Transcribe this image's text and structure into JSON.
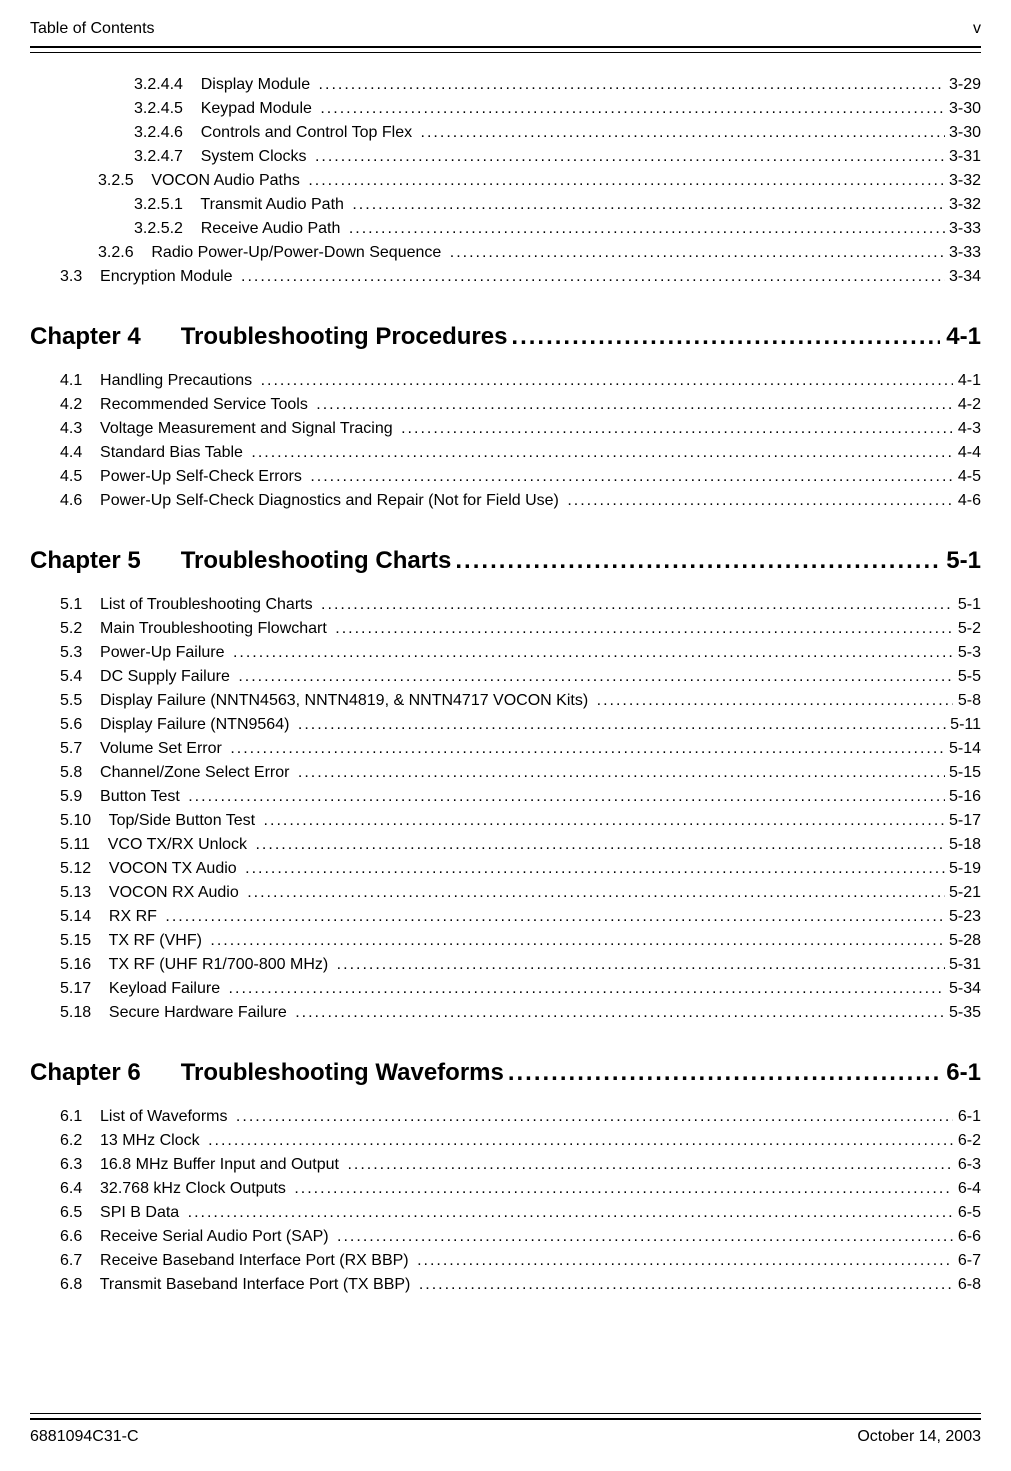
{
  "header": {
    "left": "Table of Contents",
    "right": "v"
  },
  "footer": {
    "left": "6881094C31-C",
    "right": "October 14, 2003"
  },
  "pre_entries": [
    {
      "indent": 3,
      "num": "3.2.4.4",
      "title": "Display Module",
      "page": "3-29"
    },
    {
      "indent": 3,
      "num": "3.2.4.5",
      "title": "Keypad Module",
      "page": "3-30"
    },
    {
      "indent": 3,
      "num": "3.2.4.6",
      "title": "Controls and Control Top Flex",
      "page": "3-30"
    },
    {
      "indent": 3,
      "num": "3.2.4.7",
      "title": "System Clocks",
      "page": "3-31"
    },
    {
      "indent": 2,
      "num": "3.2.5",
      "title": "VOCON Audio Paths",
      "page": "3-32"
    },
    {
      "indent": 3,
      "num": "3.2.5.1",
      "title": "Transmit Audio Path",
      "page": "3-32"
    },
    {
      "indent": 3,
      "num": "3.2.5.2",
      "title": "Receive Audio Path",
      "page": "3-33"
    },
    {
      "indent": 2,
      "num": "3.2.6",
      "title": "Radio Power-Up/Power-Down Sequence",
      "page": "3-33"
    },
    {
      "indent": 1,
      "num": "3.3",
      "title": "Encryption Module",
      "page": "3-34"
    }
  ],
  "chapters": [
    {
      "num": "Chapter 4",
      "title": "Troubleshooting Procedures",
      "page": "4-1",
      "entries": [
        {
          "indent": 1,
          "num": "4.1",
          "title": "Handling Precautions",
          "page": "4-1"
        },
        {
          "indent": 1,
          "num": "4.2",
          "title": "Recommended Service Tools",
          "page": "4-2"
        },
        {
          "indent": 1,
          "num": "4.3",
          "title": "Voltage Measurement and Signal Tracing",
          "page": "4-3"
        },
        {
          "indent": 1,
          "num": "4.4",
          "title": "Standard Bias Table",
          "page": "4-4"
        },
        {
          "indent": 1,
          "num": "4.5",
          "title": "Power-Up Self-Check Errors",
          "page": "4-5"
        },
        {
          "indent": 1,
          "num": "4.6",
          "title": "Power-Up Self-Check Diagnostics and Repair (Not for Field Use)",
          "page": "4-6"
        }
      ]
    },
    {
      "num": "Chapter 5",
      "title": "Troubleshooting Charts",
      "page": "5-1",
      "entries": [
        {
          "indent": 1,
          "num": "5.1",
          "title": "List of Troubleshooting Charts",
          "page": "5-1"
        },
        {
          "indent": 1,
          "num": "5.2",
          "title": "Main Troubleshooting Flowchart",
          "page": "5-2"
        },
        {
          "indent": 1,
          "num": "5.3",
          "title": "Power-Up Failure",
          "page": "5-3"
        },
        {
          "indent": 1,
          "num": "5.4",
          "title": "DC Supply Failure",
          "page": "5-5"
        },
        {
          "indent": 1,
          "num": "5.5",
          "title": "Display Failure (NNTN4563, NNTN4819, & NNTN4717 VOCON Kits)",
          "page": "5-8"
        },
        {
          "indent": 1,
          "num": "5.6",
          "title": "Display Failure (NTN9564)",
          "page": "5-11"
        },
        {
          "indent": 1,
          "num": "5.7",
          "title": "Volume Set Error",
          "page": "5-14"
        },
        {
          "indent": 1,
          "num": "5.8",
          "title": "Channel/Zone Select Error",
          "page": "5-15"
        },
        {
          "indent": 1,
          "num": "5.9",
          "title": "Button Test",
          "page": "5-16"
        },
        {
          "indent": 1,
          "num": "5.10",
          "title": "Top/Side Button Test",
          "page": "5-17"
        },
        {
          "indent": 1,
          "num": "5.11",
          "title": "VCO TX/RX Unlock",
          "page": "5-18"
        },
        {
          "indent": 1,
          "num": "5.12",
          "title": "VOCON TX Audio",
          "page": "5-19"
        },
        {
          "indent": 1,
          "num": "5.13",
          "title": "VOCON RX Audio",
          "page": "5-21"
        },
        {
          "indent": 1,
          "num": "5.14",
          "title": "RX RF",
          "page": "5-23"
        },
        {
          "indent": 1,
          "num": "5.15",
          "title": "TX RF (VHF)",
          "page": "5-28"
        },
        {
          "indent": 1,
          "num": "5.16",
          "title": "TX RF (UHF R1/700-800 MHz)",
          "page": "5-31"
        },
        {
          "indent": 1,
          "num": "5.17",
          "title": "Keyload Failure",
          "page": "5-34"
        },
        {
          "indent": 1,
          "num": "5.18",
          "title": "Secure Hardware Failure",
          "page": "5-35"
        }
      ]
    },
    {
      "num": "Chapter 6",
      "title": "Troubleshooting Waveforms",
      "page": "6-1",
      "entries": [
        {
          "indent": 1,
          "num": "6.1",
          "title": "List of Waveforms",
          "page": "6-1"
        },
        {
          "indent": 1,
          "num": "6.2",
          "title": "13 MHz Clock",
          "page": "6-2"
        },
        {
          "indent": 1,
          "num": "6.3",
          "title": "16.8 MHz Buffer Input and Output",
          "page": "6-3"
        },
        {
          "indent": 1,
          "num": "6.4",
          "title": "32.768 kHz Clock Outputs",
          "page": "6-4"
        },
        {
          "indent": 1,
          "num": "6.5",
          "title": "SPI B Data",
          "page": "6-5"
        },
        {
          "indent": 1,
          "num": "6.6",
          "title": "Receive Serial Audio Port (SAP)",
          "page": "6-6"
        },
        {
          "indent": 1,
          "num": "6.7",
          "title": "Receive Baseband Interface Port (RX BBP)",
          "page": "6-7"
        },
        {
          "indent": 1,
          "num": "6.8",
          "title": "Transmit Baseband Interface Port (TX BBP)",
          "page": "6-8"
        }
      ]
    }
  ]
}
